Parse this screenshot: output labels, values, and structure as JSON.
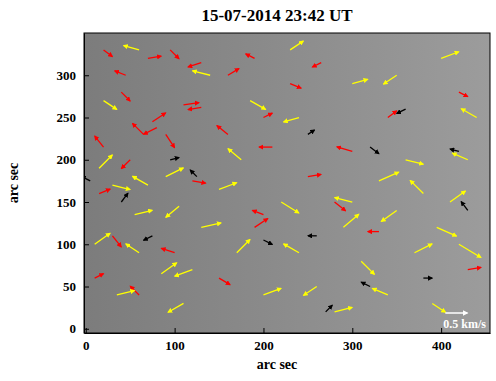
{
  "chart_data": {
    "type": "vector",
    "title": "15-07-2014  23:42 UT",
    "x_label": "arc sec",
    "y_label": "arc sec",
    "xlim": [
      -2,
      455
    ],
    "ylim": [
      -5,
      350
    ],
    "xticks": [
      0,
      100,
      200,
      300,
      400
    ],
    "yticks": [
      0,
      50,
      100,
      150,
      200,
      250,
      300
    ],
    "reference_vector": {
      "value": 0.5,
      "label": "0.5 km/s"
    },
    "series": [
      {
        "color": "#ff0000",
        "marker": "arrow",
        "x": [
          20,
          45,
          70,
          95,
          130,
          160,
          190,
          110,
          130,
          75,
          80,
          90,
          65,
          40,
          20,
          15,
          50,
          120,
          160,
          200,
          210,
          230,
          190,
          200,
          30,
          100,
          150,
          60,
          250,
          300,
          280,
          340,
          330,
          420,
          430,
          265,
          10
        ],
        "y": [
          330,
          300,
          320,
          330,
          315,
          300,
          320,
          265,
          262,
          245,
          238,
          230,
          230,
          280,
          215,
          160,
          200,
          175,
          230,
          250,
          215,
          290,
          120,
          135,
          110,
          90,
          60,
          40,
          180,
          210,
          150,
          250,
          115,
          280,
          70,
          315,
          60
        ],
        "u": [
          0.2,
          -0.25,
          0.3,
          0.2,
          -0.3,
          0.25,
          -0.2,
          0.35,
          -0.3,
          0.3,
          -0.3,
          0.2,
          -0.25,
          0.2,
          -0.2,
          0.25,
          -0.2,
          0.3,
          -0.25,
          0.2,
          -0.3,
          0.25,
          0.3,
          -0.25,
          0.2,
          -0.3,
          0.25,
          -0.2,
          0.3,
          -0.35,
          0.25,
          0.2,
          -0.25,
          0.2,
          0.3,
          -0.2,
          0.2
        ],
        "v": [
          -0.15,
          0.1,
          0.05,
          -0.2,
          -0.1,
          0.15,
          0.1,
          0.05,
          -0.05,
          0.2,
          -0.15,
          -0.3,
          0.25,
          -0.2,
          0.25,
          0.1,
          -0.2,
          -0.05,
          0.2,
          0.1,
          0.0,
          -0.1,
          0.2,
          0.1,
          -0.25,
          0.1,
          -0.15,
          0.2,
          0.05,
          0.1,
          -0.2,
          0.15,
          0.0,
          -0.1,
          0.05,
          -0.1,
          0.1
        ]
      },
      {
        "color": "#ffff00",
        "marker": "arrow",
        "x": [
          15,
          30,
          10,
          55,
          70,
          90,
          105,
          130,
          120,
          85,
          60,
          35,
          110,
          150,
          175,
          185,
          140,
          230,
          240,
          220,
          240,
          200,
          260,
          290,
          300,
          310,
          330,
          350,
          360,
          380,
          395,
          410,
          420,
          430,
          370,
          340,
          390,
          300,
          350,
          400,
          440,
          280,
          20,
          60,
          170
        ],
        "y": [
          190,
          170,
          100,
          135,
          170,
          180,
          145,
          120,
          70,
          65,
          90,
          40,
          30,
          165,
          200,
          270,
          300,
          330,
          250,
          150,
          90,
          40,
          50,
          120,
          150,
          80,
          175,
          140,
          200,
          160,
          120,
          150,
          100,
          200,
          90,
          40,
          30,
          290,
          300,
          320,
          250,
          20,
          270,
          330,
          90
        ],
        "u": [
          0.3,
          0.4,
          0.35,
          0.4,
          -0.35,
          0.4,
          -0.3,
          0.45,
          -0.4,
          0.35,
          -0.3,
          0.4,
          -0.35,
          0.4,
          -0.3,
          0.35,
          -0.4,
          0.3,
          -0.35,
          0.4,
          -0.35,
          0.4,
          -0.3,
          0.35,
          -0.4,
          0.3,
          0.45,
          -0.35,
          0.4,
          -0.3,
          0.45,
          0.35,
          0.5,
          -0.35,
          0.4,
          -0.35,
          0.3,
          0.35,
          -0.3,
          0.4,
          -0.35,
          0.4,
          0.3,
          -0.35,
          0.3
        ],
        "v": [
          0.3,
          -0.1,
          0.25,
          0.1,
          0.2,
          0.2,
          -0.25,
          0.1,
          -0.15,
          0.25,
          0.2,
          0.1,
          -0.2,
          0.15,
          0.25,
          -0.2,
          0.1,
          0.2,
          -0.1,
          -0.25,
          0.2,
          0.15,
          -0.2,
          0.3,
          0.1,
          -0.3,
          0.2,
          -0.25,
          -0.1,
          0.3,
          -0.2,
          0.25,
          -0.3,
          0.15,
          0.2,
          0.15,
          -0.2,
          0.1,
          -0.2,
          0.15,
          0.2,
          0.1,
          -0.2,
          0.1,
          0.3
        ]
      },
      {
        "color": "#000000",
        "marker": "arrow",
        "x": [
          5,
          40,
          75,
          95,
          125,
          200,
          260,
          270,
          320,
          380,
          430,
          320,
          420,
          250,
          360
        ],
        "y": [
          175,
          150,
          110,
          200,
          180,
          105,
          110,
          20,
          50,
          60,
          140,
          215,
          210,
          230,
          260
        ],
        "u": [
          -0.2,
          0.15,
          -0.2,
          0.2,
          -0.15,
          0.2,
          -0.2,
          0.15,
          -0.2,
          0.2,
          -0.15,
          0.2,
          -0.2,
          0.15,
          -0.2
        ],
        "v": [
          0.1,
          0.2,
          -0.1,
          0.05,
          0.15,
          -0.1,
          0.0,
          0.15,
          0.1,
          0.0,
          0.2,
          -0.15,
          0.05,
          0.1,
          -0.1
        ]
      }
    ]
  }
}
